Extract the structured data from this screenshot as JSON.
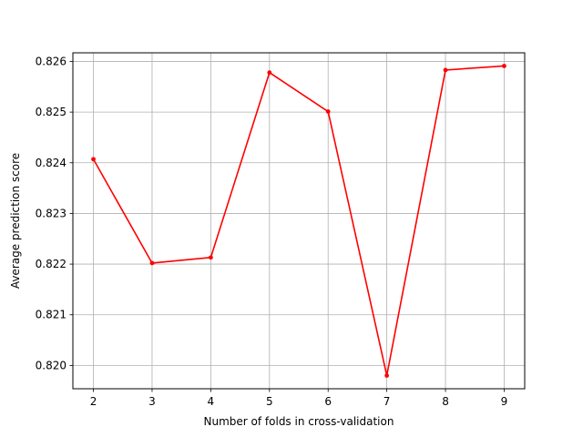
{
  "chart_data": {
    "type": "line",
    "xlabel": "Number of folds in cross-validation",
    "ylabel": "Average prediction score",
    "x": [
      2,
      3,
      4,
      5,
      6,
      7,
      8,
      9
    ],
    "series": [
      {
        "values": [
          0.82407,
          0.82202,
          0.82213,
          0.82578,
          0.82501,
          0.8198,
          0.82583,
          0.82591
        ],
        "color": "#ff0000",
        "marker": "point"
      }
    ],
    "xlim": [
      1.65,
      9.35
    ],
    "ylim": [
      0.81954,
      0.82617
    ],
    "xticks": [
      2,
      3,
      4,
      5,
      6,
      7,
      8,
      9
    ],
    "xtick_labels": [
      "2",
      "3",
      "4",
      "5",
      "6",
      "7",
      "8",
      "9"
    ],
    "yticks": [
      0.82,
      0.821,
      0.822,
      0.823,
      0.824,
      0.825,
      0.826
    ],
    "ytick_labels": [
      "0.820",
      "0.821",
      "0.822",
      "0.823",
      "0.824",
      "0.825",
      "0.826"
    ],
    "grid": true,
    "grid_color": "#b0b0b0",
    "axes_color": "#000000"
  }
}
